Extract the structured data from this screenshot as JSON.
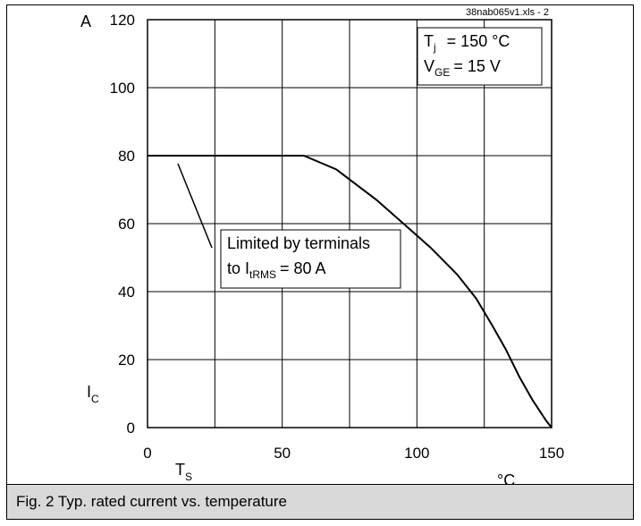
{
  "chart_data": {
    "type": "line",
    "title": "",
    "file_ref": "38nab065v1.xls - 2",
    "xlabel": {
      "symbol": "T",
      "subscript": "S",
      "unit": "°C"
    },
    "ylabel": {
      "symbol": "I",
      "subscript": "C",
      "unit": "A"
    },
    "xlim": [
      0,
      150
    ],
    "ylim": [
      0,
      120
    ],
    "x_ticks": [
      0,
      50,
      100,
      150
    ],
    "y_ticks": [
      0,
      20,
      40,
      60,
      80,
      100,
      120
    ],
    "grid_x": [
      0,
      25,
      50,
      75,
      100,
      125,
      150
    ],
    "grid_y": [
      0,
      20,
      40,
      60,
      80,
      100,
      120
    ],
    "grid": true,
    "series": [
      {
        "x": [
          0,
          58,
          70,
          85,
          95,
          105,
          115,
          122,
          128,
          133,
          138,
          143,
          148,
          150
        ],
        "y": [
          80,
          80,
          76,
          67,
          60,
          53,
          45,
          38,
          30,
          23,
          15,
          8,
          2,
          0
        ]
      }
    ],
    "conditions": {
      "tj": {
        "symbol": "T",
        "sub": "j",
        "value": "= 150 °C"
      },
      "vge": {
        "symbol": "V",
        "sub": "GE",
        "value": "= 15 V"
      }
    },
    "annotation": {
      "line1": "Limited by terminals",
      "line2_prefix": "to I",
      "line2_sub": "tRMS",
      "line2_suffix": "= 80 A"
    }
  },
  "caption": "Fig. 2 Typ. rated current vs. temperature"
}
